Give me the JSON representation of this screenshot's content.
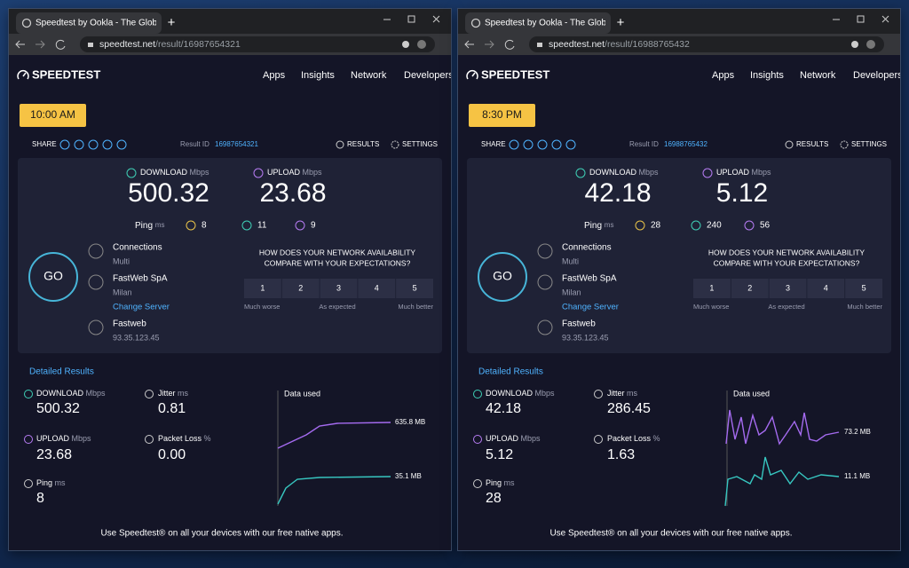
{
  "windows": [
    {
      "tab_title": "Speedtest by Ookla - The Globa",
      "url_host": "speedtest.net",
      "url_path": "/result/16987654321",
      "logo": "SPEEDTEST",
      "nav": [
        "Apps",
        "Insights",
        "Network",
        "Developers"
      ],
      "time": "10:00 AM",
      "share": "SHARE",
      "result_id_label": "Result ID",
      "result_id": "16987654321",
      "results": "RESULTS",
      "settings": "SETTINGS",
      "download": {
        "label": "DOWNLOAD",
        "unit": "Mbps",
        "value": "500.32"
      },
      "upload": {
        "label": "UPLOAD",
        "unit": "Mbps",
        "value": "23.68"
      },
      "ping": {
        "label": "Ping",
        "unit": "ms",
        "idle": "8",
        "down": "11",
        "up": "9"
      },
      "go": "GO",
      "connections": {
        "label": "Connections",
        "value": "Multi"
      },
      "server": {
        "name": "FastWeb SpA",
        "location": "Milan",
        "change": "Change Server"
      },
      "isp": {
        "name": "Fastweb",
        "ip": "93.35.123.45"
      },
      "survey": {
        "question_1": "HOW DOES YOUR NETWORK AVAILABILITY",
        "question_2": "COMPARE WITH YOUR EXPECTATIONS?",
        "ratings": [
          "1",
          "2",
          "3",
          "4",
          "5"
        ],
        "low": "Much worse",
        "mid": "As expected",
        "high": "Much better"
      },
      "detailed": {
        "title": "Detailed Results",
        "jitter": {
          "label": "Jitter",
          "unit": "ms",
          "value": "0.81"
        },
        "packet_loss": {
          "label": "Packet Loss",
          "unit": "%",
          "value": "0.00"
        },
        "data_used": {
          "title": "Data used",
          "download": "635.8 MB",
          "upload": "35.1 MB"
        }
      },
      "footer": "Use Speedtest® on all your devices with our free native apps."
    },
    {
      "tab_title": "Speedtest by Ookla - The Globa",
      "url_host": "speedtest.net",
      "url_path": "/result/16988765432",
      "logo": "SPEEDTEST",
      "nav": [
        "Apps",
        "Insights",
        "Network",
        "Developers"
      ],
      "time": "8:30 PM",
      "share": "SHARE",
      "result_id_label": "Result ID",
      "result_id": "16988765432",
      "results": "RESULTS",
      "settings": "SETTINGS",
      "download": {
        "label": "DOWNLOAD",
        "unit": "Mbps",
        "value": "42.18"
      },
      "upload": {
        "label": "UPLOAD",
        "unit": "Mbps",
        "value": "5.12"
      },
      "ping": {
        "label": "Ping",
        "unit": "ms",
        "idle": "28",
        "down": "240",
        "up": "56"
      },
      "go": "GO",
      "connections": {
        "label": "Connections",
        "value": "Multi"
      },
      "server": {
        "name": "FastWeb SpA",
        "location": "Milan",
        "change": "Change Server"
      },
      "isp": {
        "name": "Fastweb",
        "ip": "93.35.123.45"
      },
      "survey": {
        "question_1": "HOW DOES YOUR NETWORK AVAILABILITY",
        "question_2": "COMPARE WITH YOUR EXPECTATIONS?",
        "ratings": [
          "1",
          "2",
          "3",
          "4",
          "5"
        ],
        "low": "Much worse",
        "mid": "As expected",
        "high": "Much better"
      },
      "detailed": {
        "title": "Detailed Results",
        "jitter": {
          "label": "Jitter",
          "unit": "ms",
          "value": "286.45"
        },
        "packet_loss": {
          "label": "Packet Loss",
          "unit": "%",
          "value": "1.63"
        },
        "data_used": {
          "title": "Data used",
          "download": "73.2 MB",
          "upload": "11.1 MB"
        }
      },
      "footer": "Use Speedtest® on all your devices with our free native apps."
    }
  ]
}
